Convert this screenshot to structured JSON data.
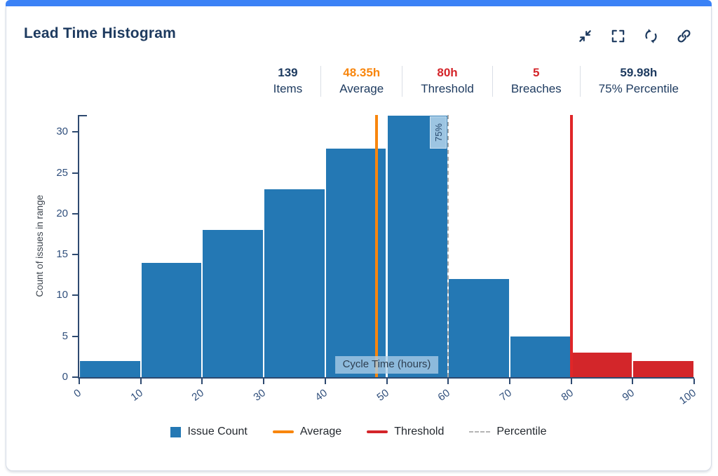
{
  "colors": {
    "navy": "#1d3a5f",
    "accent": "#3b82f6",
    "card_border": "#d6dce6",
    "divider": "#d9dee6",
    "axis": "#2e4a70",
    "tick_label": "#304f7c"
  },
  "header": {
    "title": "Lead Time Histogram",
    "actions": [
      {
        "name": "collapse-button",
        "icon": "collapse-icon"
      },
      {
        "name": "fullscreen-button",
        "icon": "fullscreen-icon"
      },
      {
        "name": "refresh-button",
        "icon": "refresh-icon"
      },
      {
        "name": "link-button",
        "icon": "link-icon"
      }
    ]
  },
  "stats": [
    {
      "key": "items",
      "value": "139",
      "label": "Items",
      "value_color": "#1d3a5f"
    },
    {
      "key": "average",
      "value": "48.35h",
      "label": "Average",
      "value_color": "#f8860d"
    },
    {
      "key": "threshold",
      "value": "80h",
      "label": "Threshold",
      "value_color": "#d4252a"
    },
    {
      "key": "breaches",
      "value": "5",
      "label": "Breaches",
      "value_color": "#d4252a"
    },
    {
      "key": "percentile",
      "value": "59.98h",
      "label": "75% Percentile",
      "value_color": "#1d3a5f"
    }
  ],
  "chart_data": {
    "type": "bar",
    "title": "Lead Time Histogram",
    "xlabel": "Cycle Time (hours)",
    "ylabel": "Count of issues in range",
    "xlim": [
      0,
      100
    ],
    "ylim": [
      0,
      32.1
    ],
    "x_ticks": [
      0,
      10,
      20,
      30,
      40,
      50,
      60,
      70,
      80,
      90,
      100
    ],
    "y_ticks": [
      0,
      5,
      10,
      15,
      20,
      25,
      30
    ],
    "grid": false,
    "legend_position": "bottom",
    "bins": [
      {
        "from": 0,
        "to": 10,
        "count": 2
      },
      {
        "from": 10,
        "to": 20,
        "count": 14
      },
      {
        "from": 20,
        "to": 30,
        "count": 18
      },
      {
        "from": 30,
        "to": 40,
        "count": 23
      },
      {
        "from": 40,
        "to": 50,
        "count": 28
      },
      {
        "from": 50,
        "to": 60,
        "count": 32
      },
      {
        "from": 60,
        "to": 70,
        "count": 12
      },
      {
        "from": 70,
        "to": 80,
        "count": 5
      },
      {
        "from": 80,
        "to": 90,
        "count": 3
      },
      {
        "from": 90,
        "to": 100,
        "count": 2
      }
    ],
    "average": 48.35,
    "threshold": 80,
    "percentile": {
      "value": 59.98,
      "label": "75%"
    },
    "colors": {
      "bar": "#2478b4",
      "breach": "#d3262a",
      "average": "#f8860d",
      "threshold": "#e02628",
      "percentile": "#a8a8a8"
    },
    "legend": [
      {
        "label": "Issue Count",
        "marker": "square",
        "color": "#2478b4"
      },
      {
        "label": "Average",
        "marker": "line",
        "color": "#f8860d"
      },
      {
        "label": "Threshold",
        "marker": "line",
        "color": "#d4252a"
      },
      {
        "label": "Percentile",
        "marker": "dash",
        "color": "#b5b5b5"
      }
    ]
  }
}
